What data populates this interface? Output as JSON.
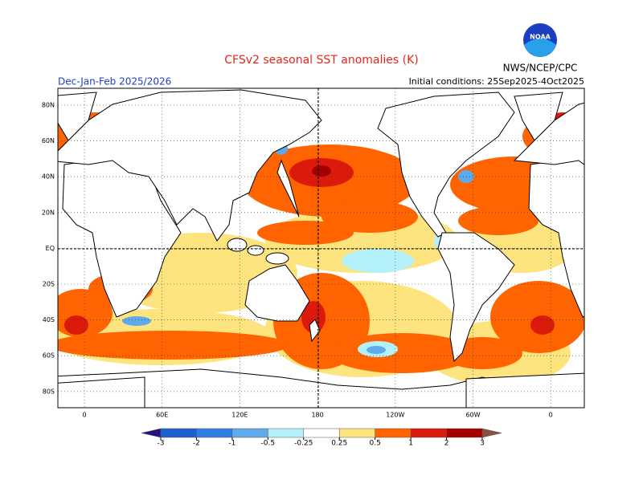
{
  "header": {
    "title": "CFSv2 seasonal SST anomalies (K)",
    "period": "Dec-Jan-Feb 2025/2026",
    "initial_conditions": "Initial conditions: 25Sep2025-4Oct2025",
    "agency": "NWS/NCEP/CPC",
    "logo": "NOAA"
  },
  "map": {
    "lat_labels": [
      "80N",
      "60N",
      "40N",
      "20N",
      "EQ",
      "20S",
      "40S",
      "60S",
      "80S"
    ],
    "lon_labels": [
      "0",
      "60E",
      "120E",
      "180",
      "120W",
      "60W",
      "0"
    ]
  },
  "colorbar": {
    "levels": [
      -3,
      -2,
      -1,
      -0.5,
      -0.25,
      0.25,
      0.5,
      1,
      2,
      3
    ],
    "colors": [
      "#2a1080",
      "#1c5fce",
      "#2f80e2",
      "#5eaaec",
      "#b4f0fa",
      "#ffffff",
      "#fde47f",
      "#ff6400",
      "#dc1a0c",
      "#a40000",
      "#8a5040"
    ]
  }
}
